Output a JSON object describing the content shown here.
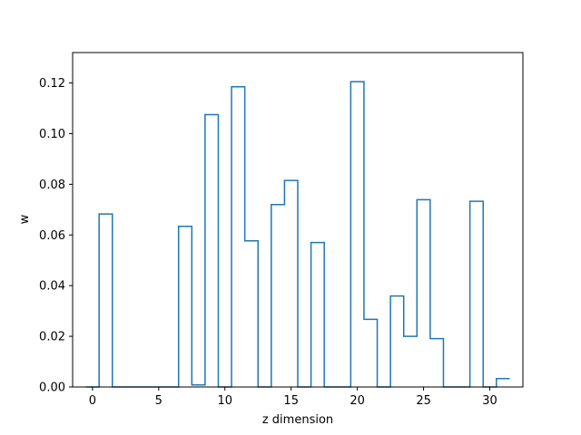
{
  "chart_data": {
    "type": "step",
    "xlabel": "z dimension",
    "ylabel": "w",
    "xlim": [
      -1.5,
      32.5
    ],
    "ylim": [
      0,
      0.132
    ],
    "xticks": [
      0,
      5,
      10,
      15,
      20,
      25,
      30
    ],
    "yticks": [
      0.0,
      0.02,
      0.04,
      0.06,
      0.08,
      0.1,
      0.12
    ],
    "xtick_labels": [
      "0",
      "5",
      "10",
      "15",
      "20",
      "25",
      "30"
    ],
    "ytick_labels": [
      "0.00",
      "0.02",
      "0.04",
      "0.06",
      "0.08",
      "0.10",
      "0.12"
    ],
    "grid": false,
    "line_color": "#1f77b4",
    "series": [
      {
        "x": [
          0,
          1,
          2,
          3,
          4,
          5,
          6,
          7,
          8,
          9,
          10,
          11,
          12,
          13,
          14,
          15,
          16,
          17,
          18,
          19,
          20,
          21,
          22,
          23,
          24,
          25,
          26,
          27,
          28,
          29,
          30,
          31
        ],
        "values": [
          0.0,
          0.0683,
          0.0,
          0.0,
          0.0,
          0.0,
          0.0,
          0.0634,
          0.0008,
          0.1075,
          0.0,
          0.1185,
          0.0577,
          0.0,
          0.072,
          0.0815,
          0.0,
          0.057,
          0.0,
          0.0,
          0.1205,
          0.0267,
          0.0,
          0.0359,
          0.02,
          0.0739,
          0.0191,
          0.0,
          0.0,
          0.0733,
          0.0,
          0.0033
        ]
      }
    ]
  }
}
